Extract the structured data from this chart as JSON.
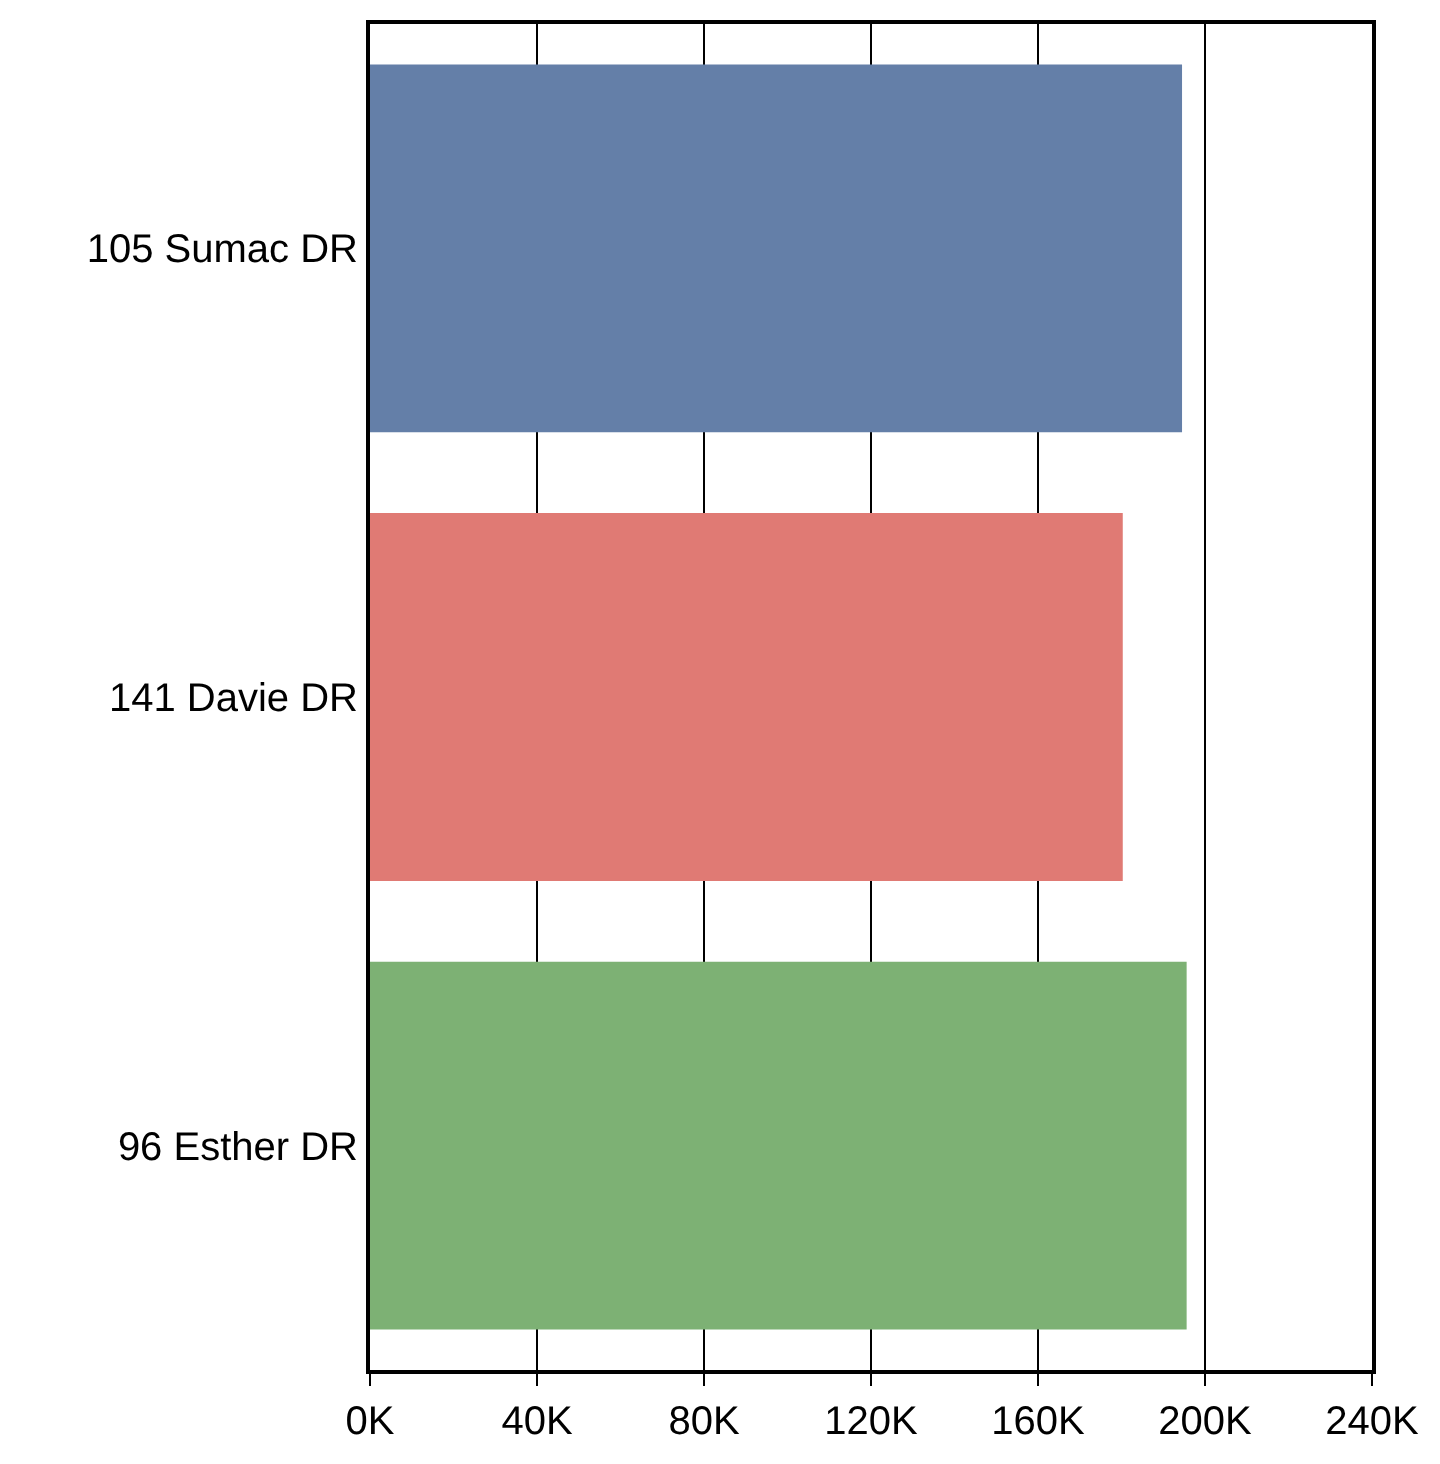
{
  "chart_data": {
    "type": "bar",
    "orientation": "horizontal",
    "categories": [
      "105 Sumac DR",
      "141 Davie DR",
      "96 Esther DR"
    ],
    "values": [
      194.5,
      180.3,
      195.6
    ],
    "colors": [
      "#647fa8",
      "#e07a74",
      "#7db174"
    ],
    "xlim": [
      0,
      240
    ],
    "xticks": [
      {
        "value": 0,
        "label": "0K"
      },
      {
        "value": 40,
        "label": "40K"
      },
      {
        "value": 80,
        "label": "80K"
      },
      {
        "value": 120,
        "label": "120K"
      },
      {
        "value": 160,
        "label": "160K"
      },
      {
        "value": 200,
        "label": "200K"
      },
      {
        "value": 240,
        "label": "240K"
      }
    ],
    "grid": "x"
  }
}
